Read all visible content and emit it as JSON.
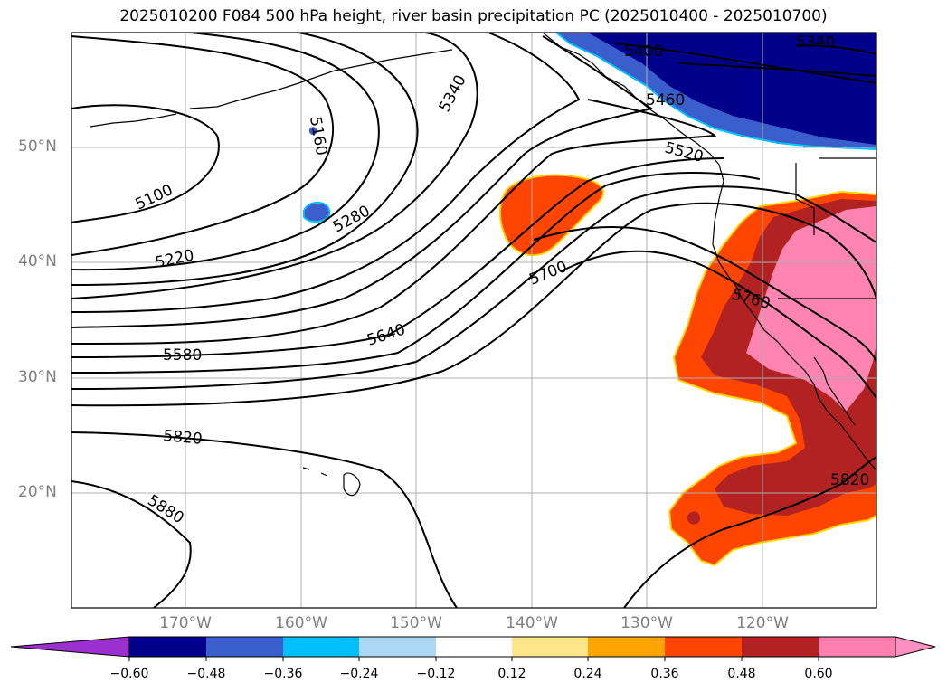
{
  "title": "2025010200 F084 500 hPa height, river basin precipitation PC (2025010400 - 2025010700)",
  "latitude_labels": [
    "50°N",
    "40°N",
    "30°N",
    "20°N"
  ],
  "longitude_labels": [
    "170°W",
    "160°W",
    "150°W",
    "140°W",
    "130°W",
    "120°W"
  ],
  "contour_labels": [
    "5100",
    "5160",
    "5220",
    "5280",
    "5340",
    "5400",
    "5460",
    "5520",
    "5580",
    "5640",
    "5700",
    "5760",
    "5820",
    "5820",
    "5880",
    "5340"
  ],
  "colorbar": {
    "ticks": [
      "−0.60",
      "−0.48",
      "−0.36",
      "−0.24",
      "−0.12",
      "0.12",
      "0.24",
      "0.36",
      "0.48",
      "0.60"
    ],
    "colors": [
      "#9b30d0",
      "#00008b",
      "#3a5fcd",
      "#00bfff",
      "#add8f5",
      "#ffffff",
      "#ffe68a",
      "#ffa500",
      "#ff4500",
      "#b22222",
      "#ff7fae",
      "#ff8fc0"
    ]
  },
  "fill_colors": {
    "strong_positive": "#b22222",
    "moderate_positive": "#ff4500",
    "very_strong_positive": "#ff84b0",
    "strong_negative": "#00008b",
    "moderate_negative": "#3a5fcd"
  }
}
